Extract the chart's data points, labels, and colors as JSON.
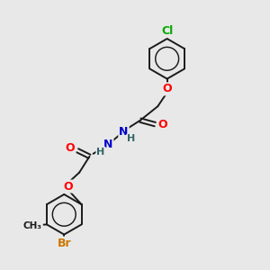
{
  "bg_color": "#e8e8e8",
  "bond_color": "#1a1a1a",
  "bond_lw": 1.4,
  "atom_colors": {
    "Cl": "#00aa00",
    "O": "#ff0000",
    "N": "#0000cc",
    "H": "#336666",
    "Br": "#cc7700",
    "C": "#1a1a1a",
    "CH3": "#1a1a1a"
  },
  "font_size": 8.5,
  "fig_size": [
    3.0,
    3.0
  ],
  "dpi": 100,
  "xlim": [
    0,
    10
  ],
  "ylim": [
    0,
    10
  ]
}
